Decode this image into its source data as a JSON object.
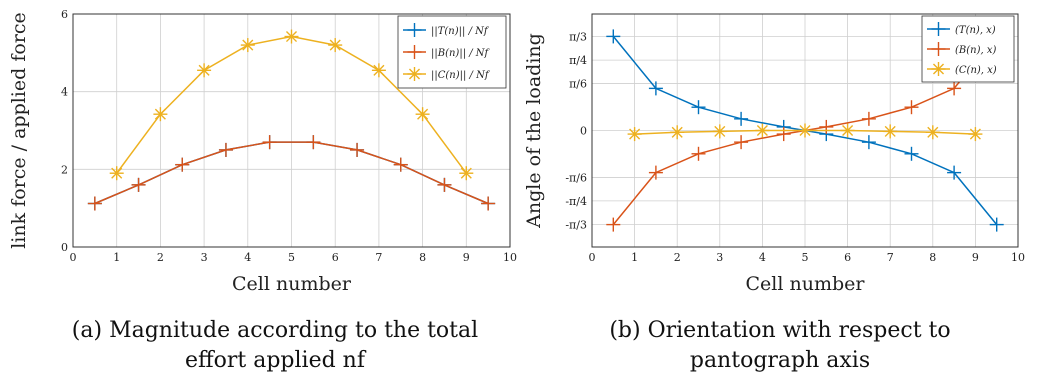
{
  "captions": {
    "a_line1": "(a) Magnitude according to the total",
    "a_line2": "effort applied nf",
    "b_line1": "(b) Orientation with respect to",
    "b_line2": "pantograph axis"
  },
  "colors": {
    "blue": "#0072BD",
    "red": "#D95319",
    "yellow": "#EDB120",
    "grid": "#cfcfcf"
  },
  "chart_data": [
    {
      "type": "line",
      "xlabel": "Cell number",
      "ylabel": "link force / applied force",
      "xlim": [
        0,
        10
      ],
      "ylim": [
        0,
        6
      ],
      "xticks": [
        "0",
        "1",
        "2",
        "3",
        "4",
        "5",
        "6",
        "7",
        "8",
        "9",
        "10"
      ],
      "yticks": [
        "0",
        "2",
        "4",
        "6"
      ],
      "grid": true,
      "legend_position": "top-right",
      "series": [
        {
          "name": "||T(n)|| / Nf",
          "color": "#0072BD",
          "marker": "plus",
          "x": [
            0.5,
            1.5,
            2.5,
            3.5,
            4.5,
            5.5,
            6.5,
            7.5,
            8.5,
            9.5
          ],
          "y": [
            1.12,
            1.6,
            2.12,
            2.5,
            2.7,
            2.7,
            2.5,
            2.12,
            1.6,
            1.12
          ]
        },
        {
          "name": "||B(n)|| / Nf",
          "color": "#D95319",
          "marker": "plus",
          "x": [
            0.5,
            1.5,
            2.5,
            3.5,
            4.5,
            5.5,
            6.5,
            7.5,
            8.5,
            9.5
          ],
          "y": [
            1.12,
            1.6,
            2.12,
            2.5,
            2.7,
            2.7,
            2.5,
            2.12,
            1.6,
            1.12
          ]
        },
        {
          "name": "||C(n)|| / Nf",
          "color": "#EDB120",
          "marker": "asterisk",
          "x": [
            1,
            2,
            3,
            4,
            5,
            6,
            7,
            8,
            9
          ],
          "y": [
            1.9,
            3.42,
            4.55,
            5.2,
            5.42,
            5.2,
            4.55,
            3.42,
            1.9
          ]
        }
      ]
    },
    {
      "type": "line",
      "xlabel": "Cell number",
      "ylabel": "Angle of the loading",
      "xlim": [
        0,
        10
      ],
      "ylim": [
        -1.3,
        1.3
      ],
      "xticks": [
        "0",
        "1",
        "2",
        "3",
        "4",
        "5",
        "6",
        "7",
        "8",
        "9",
        "10"
      ],
      "yticks": [
        {
          "value": 1.0472,
          "label": "π/3"
        },
        {
          "value": 0.7854,
          "label": "π/4"
        },
        {
          "value": 0.5236,
          "label": "π/6"
        },
        {
          "value": 0,
          "label": "0"
        },
        {
          "value": -0.5236,
          "label": "-π/6"
        },
        {
          "value": -0.7854,
          "label": "-π/4"
        },
        {
          "value": -1.0472,
          "label": "-π/3"
        }
      ],
      "grid": true,
      "legend_position": "top-right",
      "series": [
        {
          "name": "(T(n), x)",
          "color": "#0072BD",
          "marker": "plus",
          "x": [
            0.5,
            1.5,
            2.5,
            3.5,
            4.5,
            5.5,
            6.5,
            7.5,
            8.5,
            9.5
          ],
          "y": [
            1.05,
            0.47,
            0.26,
            0.13,
            0.04,
            -0.04,
            -0.13,
            -0.26,
            -0.47,
            -1.05
          ]
        },
        {
          "name": "(B(n), x)",
          "color": "#D95319",
          "marker": "plus",
          "x": [
            0.5,
            1.5,
            2.5,
            3.5,
            4.5,
            5.5,
            6.5,
            7.5,
            8.5,
            9.5
          ],
          "y": [
            -1.05,
            -0.47,
            -0.26,
            -0.13,
            -0.04,
            0.04,
            0.13,
            0.26,
            0.47,
            1.05
          ]
        },
        {
          "name": "(C(n), x)",
          "color": "#EDB120",
          "marker": "asterisk",
          "x": [
            1,
            2,
            3,
            4,
            5,
            6,
            7,
            8,
            9
          ],
          "y": [
            -0.04,
            -0.02,
            -0.01,
            0,
            0,
            0,
            -0.01,
            -0.02,
            -0.04
          ]
        }
      ]
    }
  ]
}
